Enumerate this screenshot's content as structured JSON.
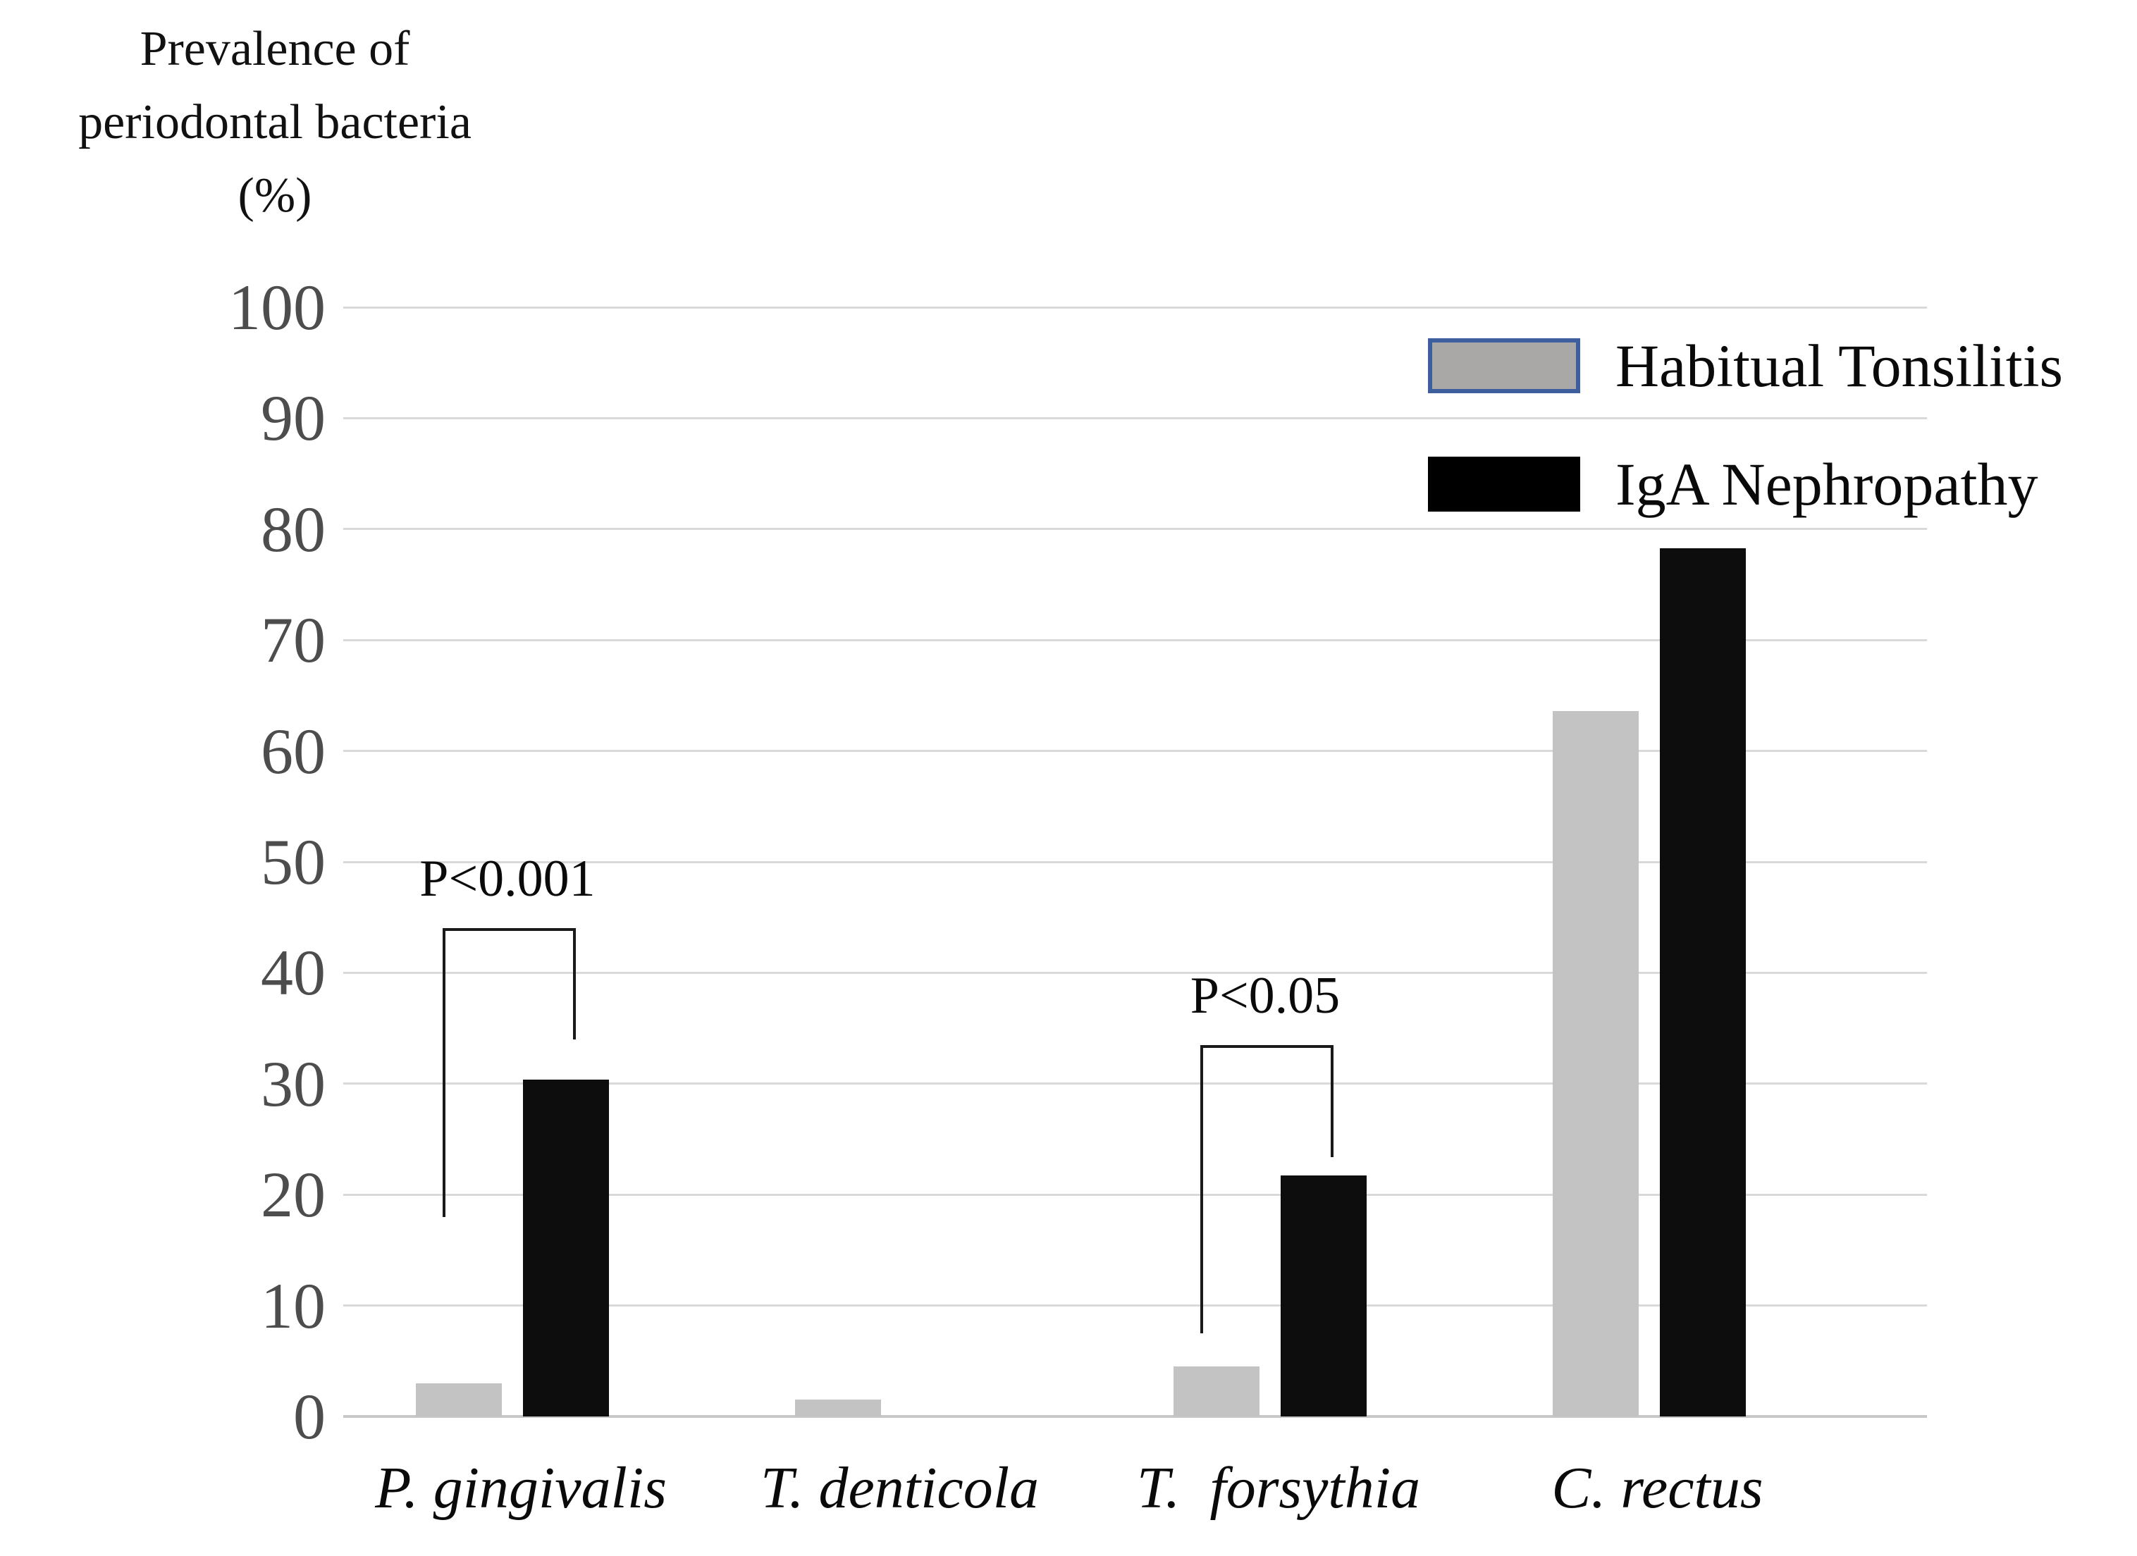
{
  "chart_data": {
    "type": "bar",
    "title_lines": [
      "Prevalence of",
      "periodontal bacteria",
      "(%)"
    ],
    "categories": [
      "P. gingivalis",
      "T. denticola",
      "T.  forsythia",
      "C. rectus"
    ],
    "series": [
      {
        "name": "Habitual Tonsilitis",
        "color": "#c3c3c3",
        "values": [
          3.0,
          1.5,
          4.5,
          63.6
        ]
      },
      {
        "name": "IgA Nephropathy",
        "color": "#0d0d0d",
        "values": [
          30.4,
          0,
          21.7,
          78.3
        ]
      }
    ],
    "y_axis": {
      "min": 0,
      "max": 100,
      "step": 10,
      "tick_labels": [
        "0",
        "10",
        "20",
        "30",
        "40",
        "50",
        "60",
        "70",
        "80",
        "90",
        "100"
      ]
    },
    "grid": true,
    "legend_position": "top-right",
    "annotations": [
      {
        "label": "P<0.001",
        "category_index": 0,
        "bracket_top_pct": 44,
        "left_arm_bottom_pct": 18,
        "right_arm_bottom_pct": 34
      },
      {
        "label": "P<0.05",
        "category_index": 2,
        "bracket_top_pct": 33.5,
        "left_arm_bottom_pct": 7.5,
        "right_arm_bottom_pct": 23.4
      }
    ]
  },
  "legend": {
    "items": [
      {
        "label": "Habitual Tonsilitis",
        "swatch_color": "#aaa7a7",
        "swatch_border": "#3f5e9e"
      },
      {
        "label": "IgA Nephropathy",
        "swatch_color": "#000000",
        "swatch_border": "#000000"
      }
    ]
  },
  "colors": {
    "gridline": "#d9d9d9",
    "axis_line": "#c8c8c8",
    "tick_label": "#4d4d4d"
  }
}
